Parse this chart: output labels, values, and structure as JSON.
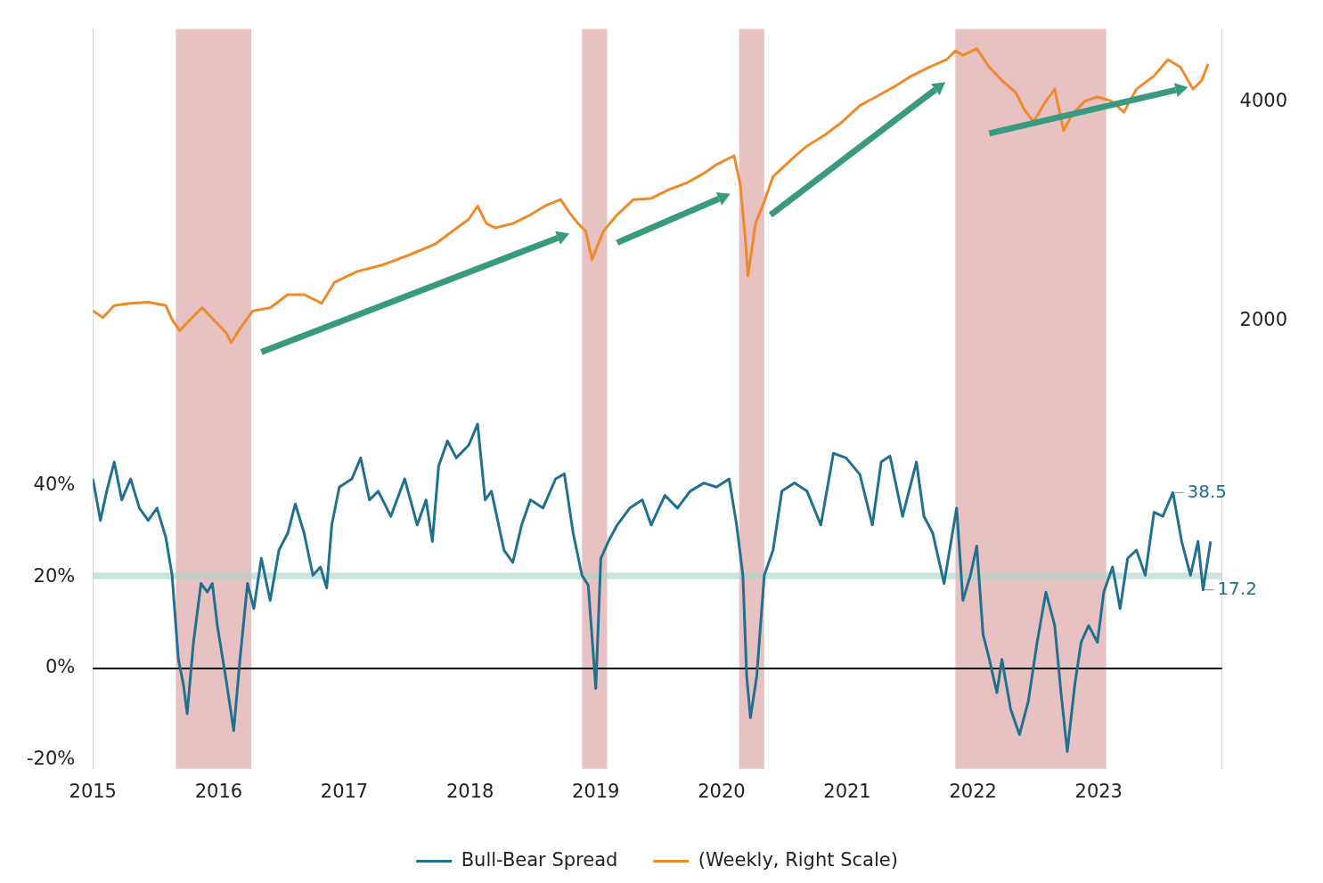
{
  "chart_data": {
    "type": "line",
    "xlim": [
      2015,
      2023.98
    ],
    "xticks": [
      2015,
      2016,
      2017,
      2018,
      2019,
      2020,
      2021,
      2022,
      2023
    ],
    "ylim": [
      -22,
      140
    ],
    "yticks": [
      {
        "value": -20,
        "label": "-20%"
      },
      {
        "value": 0,
        "label": "0%"
      },
      {
        "value": 20,
        "label": "20%"
      },
      {
        "value": 40,
        "label": "40%"
      }
    ],
    "y2lim": [
      -2100,
      4670
    ],
    "y2ticks": [
      2000,
      4000
    ],
    "legend": "bottom",
    "grid": false,
    "marker": "none",
    "line_style": "solid",
    "ref_lines": [
      {
        "axis": "y",
        "value": 0,
        "color": "#000000"
      }
    ],
    "bands": [
      {
        "axis": "x",
        "from": 2015.66,
        "to": 2016.26,
        "color": "#d99a9a"
      },
      {
        "axis": "x",
        "from": 2018.89,
        "to": 2019.09,
        "color": "#d99a9a"
      },
      {
        "axis": "x",
        "from": 2020.14,
        "to": 2020.34,
        "color": "#d99a9a"
      },
      {
        "axis": "x",
        "from": 2021.86,
        "to": 2023.06,
        "color": "#d99a9a"
      },
      {
        "axis": "y",
        "from": 19.5,
        "to": 21,
        "color": "#a9d3c6"
      }
    ],
    "annotations": [
      {
        "text": "38.5",
        "x": 2023.59,
        "y": 38.5
      },
      {
        "text": "17.2",
        "x": 2023.83,
        "y": 17.2
      }
    ],
    "series": [
      {
        "name": "Bull-Bear Spread",
        "color": "#21708f",
        "x": [
          2015,
          2015.06,
          2015.11,
          2015.17,
          2015.23,
          2015.3,
          2015.37,
          2015.44,
          2015.51,
          2015.58,
          2015.63,
          2015.68,
          2015.72,
          2015.75,
          2015.8,
          2015.86,
          2015.91,
          2015.95,
          2015.99,
          2016.06,
          2016.12,
          2016.17,
          2016.23,
          2016.28,
          2016.34,
          2016.41,
          2016.48,
          2016.55,
          2016.61,
          2016.68,
          2016.75,
          2016.81,
          2016.86,
          2016.9,
          2016.96,
          2017.06,
          2017.13,
          2017.2,
          2017.27,
          2017.37,
          2017.48,
          2017.58,
          2017.65,
          2017.7,
          2017.75,
          2017.82,
          2017.89,
          2017.99,
          2018.06,
          2018.12,
          2018.17,
          2018.27,
          2018.34,
          2018.41,
          2018.48,
          2018.58,
          2018.68,
          2018.75,
          2018.82,
          2018.89,
          2018.94,
          2019,
          2019.04,
          2019.1,
          2019.17,
          2019.27,
          2019.37,
          2019.44,
          2019.55,
          2019.65,
          2019.75,
          2019.86,
          2019.96,
          2020.06,
          2020.12,
          2020.17,
          2020.2,
          2020.23,
          2020.28,
          2020.34,
          2020.41,
          2020.48,
          2020.58,
          2020.68,
          2020.79,
          2020.89,
          2020.99,
          2021.1,
          2021.2,
          2021.27,
          2021.34,
          2021.44,
          2021.55,
          2021.61,
          2021.68,
          2021.77,
          2021.87,
          2021.92,
          2021.98,
          2022.03,
          2022.08,
          2022.13,
          2022.19,
          2022.23,
          2022.3,
          2022.37,
          2022.44,
          2022.51,
          2022.58,
          2022.65,
          2022.7,
          2022.75,
          2022.81,
          2022.86,
          2022.92,
          2022.99,
          2023.04,
          2023.11,
          2023.17,
          2023.23,
          2023.3,
          2023.37,
          2023.44,
          2023.51,
          2023.58,
          2023.59,
          2023.66,
          2023.73,
          2023.79,
          2023.83,
          2023.89
        ],
        "values": [
          41.5,
          32.4,
          38.8,
          45.2,
          36.9,
          41.5,
          35.1,
          32.4,
          35.1,
          28.7,
          20.4,
          2,
          -3.5,
          -9.9,
          5.7,
          18.6,
          16.7,
          18.6,
          9.4,
          -2.6,
          -13.6,
          2,
          18.6,
          13.1,
          24.1,
          14.9,
          25.9,
          29.6,
          36,
          29.6,
          20.4,
          22.2,
          17.6,
          31.4,
          39.7,
          41.5,
          46.1,
          36.9,
          38.8,
          33.3,
          41.5,
          31.4,
          36.9,
          27.8,
          44.3,
          49.8,
          46.1,
          48.9,
          53.5,
          36.9,
          38.8,
          25.9,
          23.2,
          31.4,
          36.9,
          35.1,
          41.5,
          42.6,
          29.6,
          20.4,
          18.2,
          -4.4,
          24.1,
          27.8,
          31.4,
          35.1,
          36.9,
          31.4,
          37.9,
          35.1,
          38.8,
          40.6,
          39.7,
          41.5,
          31.4,
          20.4,
          -1.7,
          -10.8,
          -1.7,
          20.4,
          25.9,
          38.8,
          40.6,
          38.8,
          31.4,
          47.1,
          46.1,
          42.5,
          31.4,
          45.2,
          46.5,
          33.3,
          45.2,
          33.3,
          29.6,
          18.6,
          35.1,
          14.9,
          20.4,
          26.8,
          7.5,
          2,
          -5.3,
          2,
          -9,
          -14.5,
          -7.2,
          5.7,
          16.7,
          9.4,
          -5.3,
          -18.2,
          -3.5,
          5.7,
          9.4,
          5.7,
          16.7,
          22.2,
          13.1,
          24.1,
          25.9,
          20.4,
          34.2,
          33.3,
          37.9,
          38.5,
          27.8,
          20.4,
          27.8,
          17.2,
          27.8
        ]
      },
      {
        "name": "(Weekly, Right Scale)",
        "color": "#ee8a2a",
        "axis": "y2",
        "x": [
          2015,
          2015.08,
          2015.17,
          2015.3,
          2015.44,
          2015.58,
          2015.63,
          2015.69,
          2015.79,
          2015.87,
          2015.96,
          2016.06,
          2016.1,
          2016.17,
          2016.27,
          2016.41,
          2016.55,
          2016.68,
          2016.82,
          2016.92,
          2017.1,
          2017.3,
          2017.51,
          2017.72,
          2017.86,
          2017.99,
          2018.06,
          2018.13,
          2018.2,
          2018.34,
          2018.48,
          2018.61,
          2018.72,
          2018.79,
          2018.86,
          2018.92,
          2018.97,
          2019.06,
          2019.17,
          2019.3,
          2019.44,
          2019.58,
          2019.72,
          2019.86,
          2019.96,
          2020.1,
          2020.15,
          2020.19,
          2020.21,
          2020.27,
          2020.34,
          2020.41,
          2020.55,
          2020.68,
          2020.82,
          2020.96,
          2021.1,
          2021.23,
          2021.37,
          2021.51,
          2021.65,
          2021.79,
          2021.86,
          2021.92,
          2022.03,
          2022.13,
          2022.23,
          2022.34,
          2022.41,
          2022.48,
          2022.58,
          2022.65,
          2022.72,
          2022.79,
          2022.89,
          2022.99,
          2023.1,
          2023.2,
          2023.3,
          2023.44,
          2023.55,
          2023.65,
          2023.75,
          2023.82,
          2023.87
        ],
        "values": [
          2090,
          2030,
          2140,
          2160,
          2170,
          2140,
          2010,
          1910,
          2030,
          2120,
          2010,
          1890,
          1800,
          1930,
          2090,
          2120,
          2240,
          2240,
          2160,
          2350,
          2450,
          2510,
          2600,
          2700,
          2820,
          2930,
          3050,
          2890,
          2850,
          2890,
          2970,
          3060,
          3110,
          2990,
          2890,
          2820,
          2560,
          2820,
          2970,
          3110,
          3120,
          3200,
          3260,
          3350,
          3430,
          3510,
          3240,
          2740,
          2410,
          2890,
          3090,
          3320,
          3470,
          3600,
          3700,
          3820,
          3970,
          4050,
          4140,
          4240,
          4320,
          4390,
          4470,
          4430,
          4490,
          4320,
          4200,
          4090,
          3930,
          3820,
          4010,
          4120,
          3740,
          3890,
          4010,
          4050,
          4010,
          3910,
          4120,
          4240,
          4390,
          4320,
          4120,
          4200,
          4350
        ]
      }
    ]
  }
}
